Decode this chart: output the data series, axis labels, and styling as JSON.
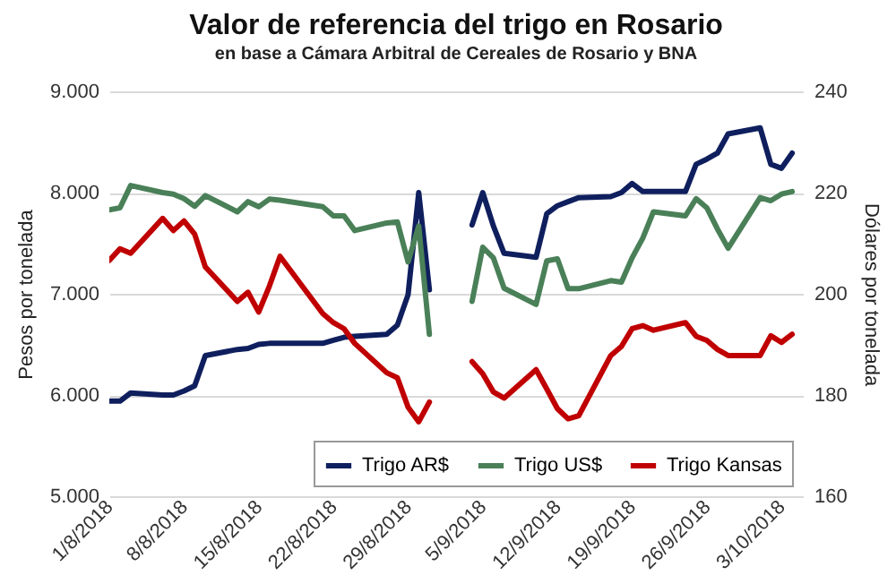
{
  "chart_data": {
    "type": "line",
    "title": "Valor de referencia del trigo en Rosario",
    "subtitle": "en base a Cámara Arbitral de Cereales de Rosario y BNA",
    "ylabel": "Pesos por tonelada",
    "y2label": "Dólares por tonelada",
    "x": [
      "2018-08-01",
      "2018-08-02",
      "2018-08-03",
      "2018-08-06",
      "2018-08-07",
      "2018-08-08",
      "2018-08-09",
      "2018-08-10",
      "2018-08-13",
      "2018-08-14",
      "2018-08-15",
      "2018-08-16",
      "2018-08-17",
      "2018-08-21",
      "2018-08-22",
      "2018-08-23",
      "2018-08-24",
      "2018-08-27",
      "2018-08-28",
      "2018-08-29",
      "2018-08-30",
      "2018-08-31",
      "2018-09-03",
      "2018-09-04",
      "2018-09-05",
      "2018-09-06",
      "2018-09-07",
      "2018-09-10",
      "2018-09-11",
      "2018-09-12",
      "2018-09-13",
      "2018-09-14",
      "2018-09-17",
      "2018-09-18",
      "2018-09-19",
      "2018-09-20",
      "2018-09-21",
      "2018-09-24",
      "2018-09-25",
      "2018-09-26",
      "2018-09-27",
      "2018-09-28",
      "2018-10-01",
      "2018-10-02",
      "2018-10-03",
      "2018-10-04"
    ],
    "series": [
      {
        "name": "Trigo AR$",
        "color": "#0f1f5e",
        "values": [
          5940,
          5940,
          6020,
          6000,
          6000,
          6040,
          6090,
          6390,
          6450,
          6460,
          6500,
          6510,
          6510,
          6510,
          6540,
          6570,
          6580,
          6600,
          6690,
          6990,
          8000,
          7040,
          null,
          7680,
          8000,
          7670,
          7400,
          7360,
          7790,
          7870,
          7910,
          7950,
          7960,
          8000,
          8090,
          8010,
          8010,
          8010,
          8280,
          8330,
          8390,
          8580,
          8640,
          8280,
          8240,
          8390
        ]
      },
      {
        "name": "Trigo US$",
        "color": "#4a8058",
        "axis": "y2",
        "values": [
          216.6,
          217.0,
          221.4,
          220.0,
          219.7,
          218.8,
          217.3,
          219.4,
          216.2,
          218.2,
          217.2,
          218.7,
          218.5,
          217.2,
          215.4,
          215.4,
          212.5,
          214.0,
          214.2,
          206.3,
          213.4,
          192.0,
          null,
          198.5,
          209.2,
          207.1,
          201.1,
          197.9,
          206.5,
          206.9,
          201.0,
          201.0,
          202.6,
          202.3,
          207.1,
          211.0,
          216.2,
          215.4,
          218.8,
          217.0,
          212.8,
          209.0,
          219.0,
          218.4,
          219.7,
          220.2
        ]
      },
      {
        "name": "Trigo Kansas",
        "color": "#c00000",
        "axis": "y2",
        "values": [
          206.6,
          208.9,
          208.0,
          214.9,
          212.5,
          214.4,
          211.8,
          205.3,
          198.5,
          200.3,
          196.4,
          201.5,
          207.4,
          196.1,
          194.3,
          193.1,
          190.2,
          184.4,
          183.4,
          177.6,
          174.7,
          178.6,
          null,
          186.6,
          184.2,
          180.6,
          179.4,
          185.0,
          181.2,
          177.3,
          175.3,
          175.9,
          187.8,
          189.6,
          193.1,
          193.7,
          192.8,
          194.3,
          191.6,
          190.8,
          189.0,
          187.8,
          187.8,
          191.7,
          190.4,
          192.0
        ]
      }
    ],
    "xlim": [
      "2018-08-01",
      "2018-10-05"
    ],
    "xticks": [
      {
        "value": "2018-08-01",
        "label": "1/8/2018"
      },
      {
        "value": "2018-08-08",
        "label": "8/8/2018"
      },
      {
        "value": "2018-08-15",
        "label": "15/8/2018"
      },
      {
        "value": "2018-08-22",
        "label": "22/8/2018"
      },
      {
        "value": "2018-08-29",
        "label": "29/8/2018"
      },
      {
        "value": "2018-09-05",
        "label": "5/9/2018"
      },
      {
        "value": "2018-09-12",
        "label": "12/9/2018"
      },
      {
        "value": "2018-09-19",
        "label": "19/9/2018"
      },
      {
        "value": "2018-09-26",
        "label": "26/9/2018"
      },
      {
        "value": "2018-10-03",
        "label": "3/10/2018"
      }
    ],
    "ylim": [
      5000,
      9000
    ],
    "yticks": [
      {
        "value": 5000,
        "label": "5.000"
      },
      {
        "value": 6000,
        "label": "6.000"
      },
      {
        "value": 7000,
        "label": "7.000"
      },
      {
        "value": 8000,
        "label": "8.000"
      },
      {
        "value": 9000,
        "label": "9.000"
      }
    ],
    "y2lim": [
      160,
      240
    ],
    "y2ticks": [
      160,
      180,
      200,
      220,
      240
    ],
    "grid": "y",
    "legend": "bottom right",
    "marker": "none",
    "line_style": "solid"
  }
}
